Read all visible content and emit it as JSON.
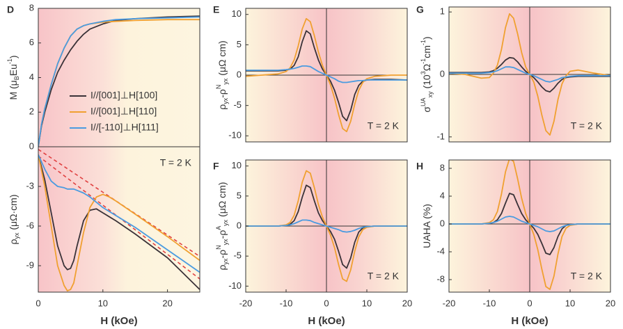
{
  "chart_data": [
    {
      "type": "line",
      "label": "D",
      "ylabel": [
        {
          "text": "M (μ"
        },
        {
          "text": "B",
          "shift": "sub"
        },
        {
          "text": "Eu"
        },
        {
          "text": "-1",
          "shift": "super"
        },
        {
          "text": ")"
        }
      ],
      "xlim": [
        0,
        25
      ],
      "ylim": [
        0,
        8
      ],
      "yticks": [
        0,
        2,
        4,
        6,
        8
      ],
      "background": "warm-left",
      "legend": "right",
      "x": [
        0,
        0.5,
        1,
        2,
        3,
        4,
        5,
        6,
        7,
        8,
        10,
        12,
        15,
        20,
        25
      ],
      "series": [
        {
          "name": "I//[001]⊥H[100]",
          "color": "#3a3238",
          "values": [
            0,
            1.2,
            2.0,
            3.3,
            4.3,
            5.0,
            5.6,
            6.1,
            6.5,
            6.8,
            7.1,
            7.3,
            7.4,
            7.5,
            7.55
          ]
        },
        {
          "name": "I//[001]⊥H[110]",
          "color": "#f0a030",
          "values": [
            0,
            1.3,
            2.2,
            3.6,
            4.8,
            5.7,
            6.4,
            6.8,
            7.0,
            7.1,
            7.2,
            7.25,
            7.3,
            7.35,
            7.35
          ]
        },
        {
          "name": "I//[-110]⊥H[111]",
          "color": "#4a9be0",
          "values": [
            0,
            1.3,
            2.2,
            3.6,
            4.8,
            5.7,
            6.4,
            6.8,
            7.0,
            7.1,
            7.25,
            7.35,
            7.4,
            7.45,
            7.5
          ]
        }
      ]
    },
    {
      "type": "line",
      "ylabel": [
        {
          "text": "ρ"
        },
        {
          "text": "yx",
          "shift": "sub"
        },
        {
          "text": " (μΩ·cm)"
        }
      ],
      "xlabel": "H (kOe)",
      "annotation": "T = 2 K",
      "xlim": [
        0,
        25
      ],
      "ylim": [
        -11,
        0
      ],
      "yticks": [
        -3,
        -6,
        -9
      ],
      "xticks": [
        0,
        10,
        20
      ],
      "background": "warm-left",
      "x": [
        0,
        1,
        2,
        3,
        4,
        4.5,
        5,
        5.5,
        6,
        7,
        8,
        9,
        10,
        11,
        12,
        15,
        20,
        25
      ],
      "series": [
        {
          "color": "#3a3238",
          "values": [
            -0.6,
            -2.5,
            -5,
            -7.5,
            -9,
            -9.3,
            -9.2,
            -8.6,
            -7.5,
            -5.6,
            -4.8,
            -4.7,
            -5.0,
            -5.3,
            -5.6,
            -6.6,
            -8.4,
            -10.8
          ]
        },
        {
          "color": "#f0a030",
          "values": [
            -0.6,
            -3,
            -6,
            -9,
            -10.5,
            -10.9,
            -10.8,
            -10.3,
            -9,
            -6.5,
            -4.6,
            -3.8,
            -3.6,
            -3.8,
            -4.1,
            -5.1,
            -6.8,
            -8.6
          ]
        },
        {
          "color": "#4a9be0",
          "values": [
            -0.6,
            -1.7,
            -2.6,
            -3.0,
            -3.1,
            -3.2,
            -3.2,
            -3.2,
            -3.3,
            -3.5,
            -3.8,
            -4.2,
            -4.6,
            -4.9,
            -5.2,
            -6.1,
            -7.8,
            -9.5
          ]
        }
      ],
      "fits": [
        {
          "color": "#e04040",
          "x": [
            0,
            25
          ],
          "values": [
            -0.2,
            -8.3
          ]
        },
        {
          "color": "#e04040",
          "x": [
            0,
            25
          ],
          "values": [
            -0.7,
            -10.0
          ]
        }
      ]
    },
    {
      "type": "line",
      "label": "E",
      "ylabel": [
        {
          "text": "ρ"
        },
        {
          "text": "yx",
          "shift": "sub"
        },
        {
          "text": "-ρ"
        },
        {
          "text": "N",
          "shift": "super"
        },
        {
          "text": "yx",
          "shift": "sub"
        },
        {
          "text": " (μΩ cm)"
        }
      ],
      "annotation": "T = 2 K",
      "xlim": [
        -20,
        20
      ],
      "ylim": [
        -11,
        11
      ],
      "yticks": [
        -10,
        -5,
        0,
        5,
        10
      ],
      "background": "warm-center",
      "zero_lines": true,
      "x": [
        -20,
        -16,
        -12,
        -10,
        -9,
        -8,
        -7,
        -6,
        -5,
        -4,
        -3,
        -2,
        -1,
        0,
        1,
        2,
        3,
        4,
        5,
        6,
        7,
        8,
        9,
        10,
        12,
        16,
        20
      ],
      "series": [
        {
          "color": "#3a3238",
          "values": [
            0.7,
            0.7,
            0.7,
            0.8,
            1.0,
            1.6,
            3.0,
            5.5,
            7.3,
            6.8,
            4.5,
            2.5,
            1.0,
            0,
            -1.0,
            -2.5,
            -4.5,
            -6.8,
            -7.5,
            -5.8,
            -3.2,
            -1.7,
            -1.0,
            -0.8,
            -0.7,
            -0.7,
            -0.8
          ]
        },
        {
          "color": "#f0a030",
          "values": [
            -0.2,
            0,
            0.2,
            0.6,
            1.2,
            2.5,
            4.8,
            7.6,
            9.3,
            8.8,
            6.5,
            3.8,
            1.6,
            0,
            -1.6,
            -3.8,
            -6.5,
            -8.8,
            -9.3,
            -7.6,
            -4.8,
            -2.5,
            -1.2,
            -0.6,
            -0.2,
            0,
            0
          ]
        },
        {
          "color": "#4a9be0",
          "values": [
            0.8,
            0.8,
            0.8,
            0.9,
            1.0,
            1.1,
            1.3,
            1.5,
            1.5,
            1.4,
            1.0,
            0.6,
            0.3,
            0,
            -0.3,
            -0.6,
            -1.0,
            -1.2,
            -1.2,
            -1.1,
            -1.0,
            -0.9,
            -0.9,
            -0.8,
            -0.8,
            -0.8,
            -0.8
          ]
        }
      ]
    },
    {
      "type": "line",
      "label": "F",
      "ylabel": [
        {
          "text": "ρ"
        },
        {
          "text": "yx",
          "shift": "sub"
        },
        {
          "text": "-ρ"
        },
        {
          "text": "N",
          "shift": "super"
        },
        {
          "text": "yx",
          "shift": "sub"
        },
        {
          "text": "-ρ"
        },
        {
          "text": "A",
          "shift": "super"
        },
        {
          "text": "yx",
          "shift": "sub"
        },
        {
          "text": " (μΩ cm)"
        }
      ],
      "xlabel": "H (kOe)",
      "annotation": "T = 2 K",
      "xlim": [
        -20,
        20
      ],
      "ylim": [
        -11,
        11
      ],
      "yticks": [
        -10,
        -5,
        0,
        5,
        10
      ],
      "xticks": [
        -20,
        -10,
        0,
        10,
        20
      ],
      "background": "warm-center",
      "zero_lines": true,
      "x": [
        -20,
        -16,
        -12,
        -10,
        -9,
        -8,
        -7,
        -6,
        -5,
        -4,
        -3,
        -2,
        -1,
        0,
        1,
        2,
        3,
        4,
        5,
        6,
        7,
        8,
        9,
        10,
        12,
        16,
        20
      ],
      "series": [
        {
          "color": "#3a3238",
          "values": [
            0,
            0,
            0,
            0.1,
            0.3,
            0.9,
            2.4,
            4.8,
            6.8,
            6.4,
            4.2,
            2.2,
            0.9,
            0,
            -0.9,
            -2.2,
            -4.2,
            -6.4,
            -7.0,
            -5.3,
            -2.7,
            -1.0,
            -0.3,
            -0.1,
            0,
            0,
            0
          ]
        },
        {
          "color": "#f0a030",
          "values": [
            0,
            0,
            0,
            0.2,
            0.6,
            1.8,
            4.2,
            7.3,
            9.2,
            8.8,
            6.4,
            3.6,
            1.5,
            0,
            -1.5,
            -3.6,
            -6.4,
            -8.8,
            -9.2,
            -7.3,
            -4.2,
            -1.8,
            -0.6,
            -0.2,
            0,
            0,
            0
          ]
        },
        {
          "color": "#4a9be0",
          "values": [
            0,
            0,
            0,
            0.1,
            0.2,
            0.4,
            0.7,
            1.0,
            1.0,
            0.9,
            0.6,
            0.4,
            0.2,
            0,
            -0.2,
            -0.4,
            -0.6,
            -0.9,
            -1.0,
            -0.9,
            -0.7,
            -0.4,
            -0.2,
            -0.1,
            0,
            0,
            0
          ]
        }
      ]
    },
    {
      "type": "line",
      "label": "G",
      "ylabel": [
        {
          "text": "σ"
        },
        {
          "text": "UA",
          "shift": "super"
        },
        {
          "text": "xy",
          "shift": "sub"
        },
        {
          "text": " (10"
        },
        {
          "text": "3",
          "shift": "super"
        },
        {
          "text": "Ω"
        },
        {
          "text": "-1",
          "shift": "super"
        },
        {
          "text": "cm"
        },
        {
          "text": "-1",
          "shift": "super"
        },
        {
          "text": ")"
        }
      ],
      "annotation": "T = 2 K",
      "xlim": [
        -20,
        20
      ],
      "ylim": [
        -1.08,
        1.08
      ],
      "yticks": [
        -1,
        0,
        1
      ],
      "background": "warm-center",
      "zero_lines": true,
      "x": [
        -20,
        -16,
        -12,
        -10,
        -9,
        -8,
        -7,
        -6,
        -5,
        -4,
        -3,
        -2,
        -1,
        0,
        1,
        2,
        3,
        4,
        5,
        6,
        7,
        8,
        9,
        10,
        12,
        16,
        20
      ],
      "series": [
        {
          "color": "#3a3238",
          "values": [
            0.03,
            0.03,
            0.03,
            0.04,
            0.06,
            0.1,
            0.16,
            0.23,
            0.27,
            0.26,
            0.2,
            0.12,
            0.05,
            0,
            -0.05,
            -0.12,
            -0.2,
            -0.26,
            -0.28,
            -0.22,
            -0.14,
            -0.08,
            -0.05,
            -0.04,
            -0.03,
            -0.03,
            -0.03
          ]
        },
        {
          "color": "#f0a030",
          "values": [
            0.02,
            0,
            -0.06,
            -0.05,
            0.02,
            0.15,
            0.4,
            0.75,
            0.97,
            0.9,
            0.65,
            0.35,
            0.12,
            0,
            -0.12,
            -0.35,
            -0.65,
            -0.9,
            -0.97,
            -0.75,
            -0.4,
            -0.15,
            -0.02,
            0.05,
            0.07,
            0.02,
            -0.02
          ]
        },
        {
          "color": "#4a9be0",
          "values": [
            0.02,
            0.02,
            0.02,
            0.03,
            0.04,
            0.06,
            0.09,
            0.12,
            0.12,
            0.11,
            0.08,
            0.05,
            0.02,
            0,
            -0.02,
            -0.05,
            -0.08,
            -0.11,
            -0.12,
            -0.1,
            -0.08,
            -0.05,
            -0.04,
            -0.03,
            -0.02,
            -0.02,
            -0.02
          ]
        }
      ]
    },
    {
      "type": "line",
      "label": "H",
      "ylabel": [
        {
          "text": "UAHA (%)"
        }
      ],
      "xlabel": "H (kOe)",
      "annotation": "T = 2 K",
      "xlim": [
        -20,
        20
      ],
      "ylim": [
        -9.8,
        9.2
      ],
      "yticks": [
        -8,
        -4,
        0,
        4,
        8
      ],
      "xticks": [
        -20,
        -10,
        0,
        10,
        20
      ],
      "background": "warm-center",
      "zero_lines": true,
      "x": [
        -20,
        -16,
        -12,
        -10,
        -9,
        -8,
        -7,
        -6,
        -5,
        -4,
        -3,
        -2,
        -1,
        0,
        1,
        2,
        3,
        4,
        5,
        6,
        7,
        8,
        9,
        10,
        12,
        16,
        20
      ],
      "series": [
        {
          "color": "#3a3238",
          "values": [
            0,
            0,
            0,
            0.1,
            0.2,
            0.6,
            1.5,
            3.0,
            4.4,
            4.2,
            2.8,
            1.5,
            0.6,
            0,
            -0.6,
            -1.5,
            -2.8,
            -4.2,
            -4.4,
            -3.4,
            -1.8,
            -0.7,
            -0.2,
            -0.1,
            0,
            0,
            0
          ]
        },
        {
          "color": "#f0a030",
          "values": [
            0,
            0,
            0,
            0.2,
            0.6,
            1.8,
            4.3,
            7.5,
            9.4,
            9.0,
            6.5,
            3.7,
            1.5,
            0,
            -1.5,
            -3.7,
            -6.5,
            -9.0,
            -9.4,
            -7.5,
            -4.3,
            -1.8,
            -0.6,
            -0.2,
            0,
            0,
            0
          ]
        },
        {
          "color": "#4a9be0",
          "values": [
            0,
            0,
            0,
            0.1,
            0.2,
            0.4,
            0.7,
            1.0,
            1.1,
            1.0,
            0.7,
            0.4,
            0.2,
            0,
            -0.2,
            -0.4,
            -0.7,
            -1.0,
            -1.1,
            -1.0,
            -0.7,
            -0.4,
            -0.2,
            -0.1,
            0,
            0,
            0
          ]
        }
      ]
    }
  ]
}
